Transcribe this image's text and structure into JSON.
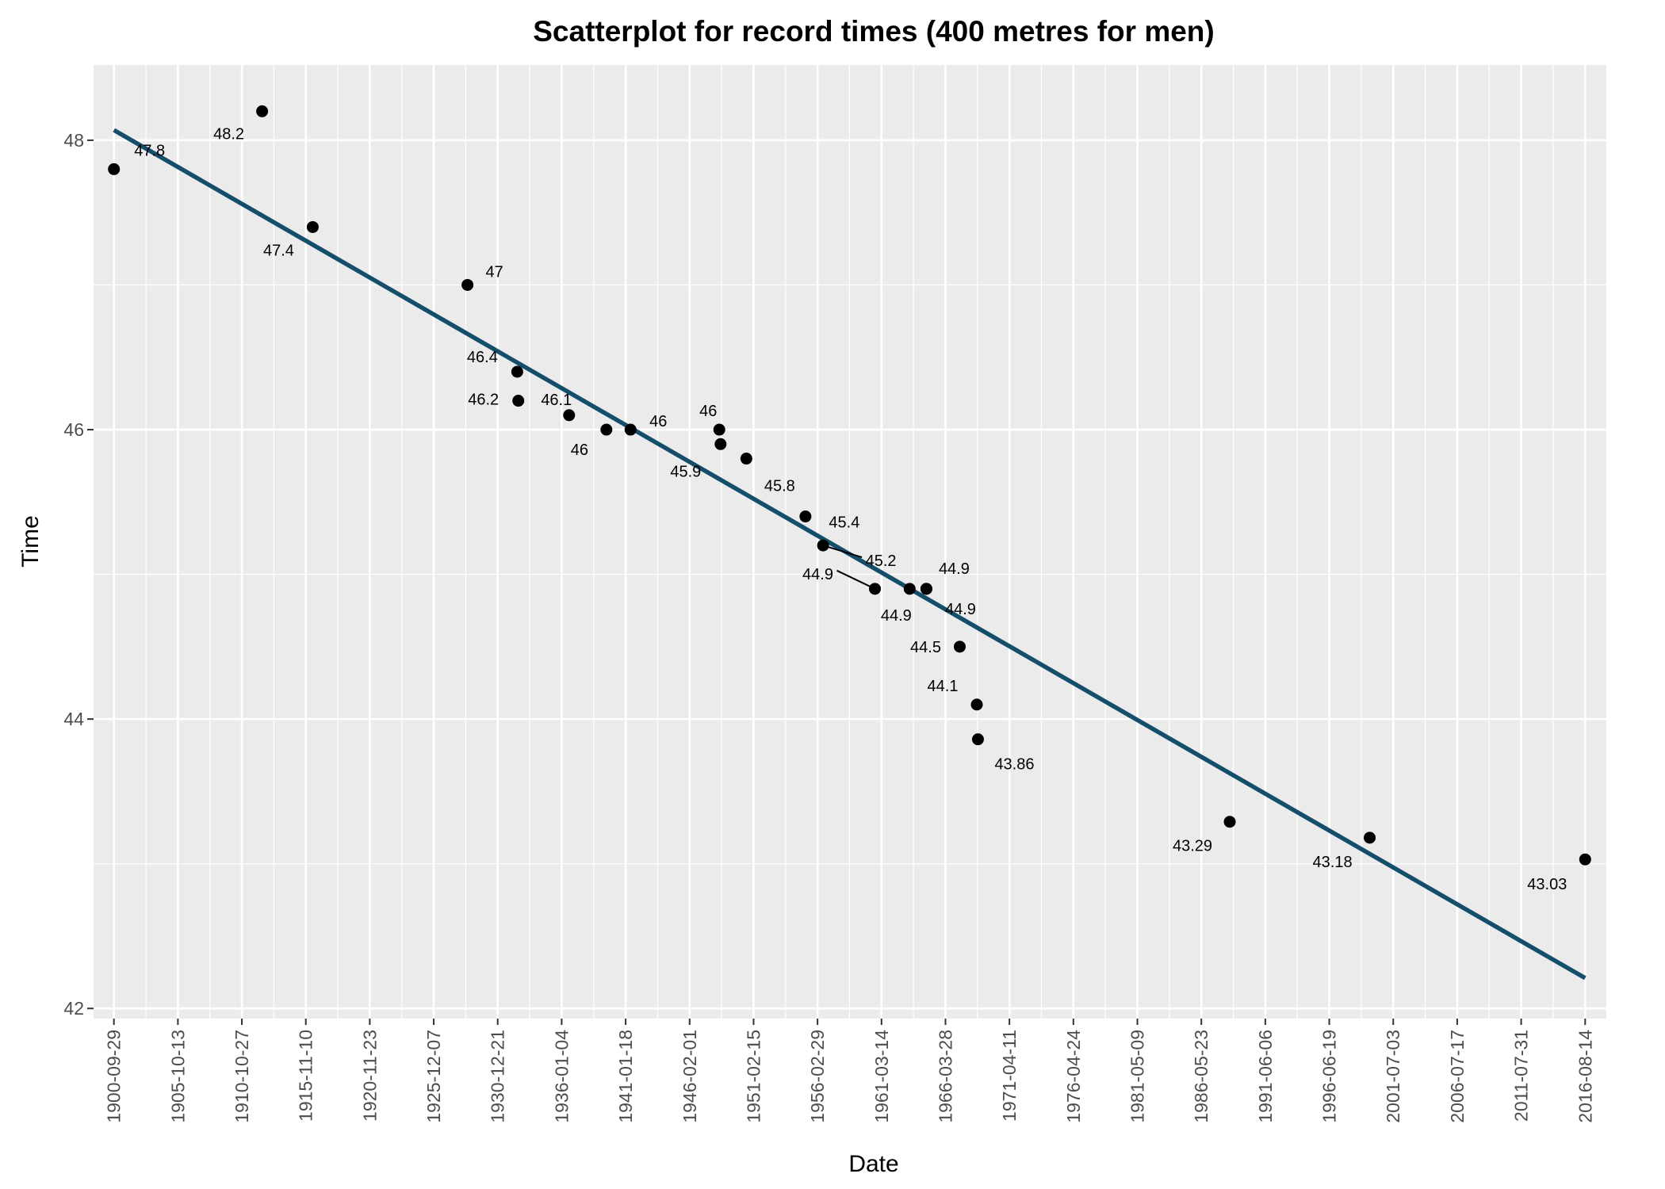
{
  "chart_data": {
    "type": "scatter",
    "title": "Scatterplot for record times (400 metres for men)",
    "xlabel": "Date",
    "ylabel": "Time",
    "x_scale": "date",
    "xlim": [
      "1899-02-20",
      "2018-04-15"
    ],
    "ylim": [
      41.93,
      48.52
    ],
    "x_ticks": [
      "1900-09-29",
      "1905-10-13",
      "1910-10-27",
      "1915-11-10",
      "1920-11-23",
      "1925-12-07",
      "1930-12-21",
      "1936-01-04",
      "1941-01-18",
      "1946-02-01",
      "1951-02-15",
      "1956-02-29",
      "1961-03-14",
      "1966-03-28",
      "1971-04-11",
      "1976-04-24",
      "1981-05-09",
      "1986-05-23",
      "1991-06-06",
      "1996-06-19",
      "2001-07-03",
      "2006-07-17",
      "2011-07-31",
      "2016-08-14"
    ],
    "y_ticks": [
      42,
      44,
      46,
      48
    ],
    "points": [
      {
        "x": "1900-09-29",
        "y": 47.8,
        "label": "47.8"
      },
      {
        "x": "1912-06-01",
        "y": 48.2,
        "label": "48.2"
      },
      {
        "x": "1916-05-27",
        "y": 47.4,
        "label": "47.4"
      },
      {
        "x": "1928-08-04",
        "y": 47.0,
        "label": "47"
      },
      {
        "x": "1932-07-05",
        "y": 46.4,
        "label": "46.4"
      },
      {
        "x": "1932-08-05",
        "y": 46.2,
        "label": "46.2"
      },
      {
        "x": "1936-08-05",
        "y": 46.1,
        "label": "46.1"
      },
      {
        "x": "1939-07-14",
        "y": 46.0,
        "label": "46"
      },
      {
        "x": "1941-06-07",
        "y": 46.0,
        "label": "46"
      },
      {
        "x": "1948-06-04",
        "y": 46.0,
        "label": "46"
      },
      {
        "x": "1948-07-10",
        "y": 45.9,
        "label": "45.9"
      },
      {
        "x": "1950-07-22",
        "y": 45.8,
        "label": "45.8"
      },
      {
        "x": "1955-03-18",
        "y": 45.4,
        "label": "45.4"
      },
      {
        "x": "1956-08-06",
        "y": 45.2,
        "label": "45.2"
      },
      {
        "x": "1960-09-06",
        "y": 44.9,
        "label": "44.9"
      },
      {
        "x": "1963-06-02",
        "y": 44.9,
        "label": "44.9"
      },
      {
        "x": "1964-09-25",
        "y": 44.9,
        "label": "44.9"
      },
      {
        "x": "1964-09-26",
        "y": 44.9,
        "label": "44.9"
      },
      {
        "x": "1967-05-13",
        "y": 44.5,
        "label": "44.5"
      },
      {
        "x": "1968-09-15",
        "y": 44.1,
        "label": "44.1"
      },
      {
        "x": "1968-10-18",
        "y": 43.86,
        "label": "43.86"
      },
      {
        "x": "1988-08-17",
        "y": 43.29,
        "label": "43.29"
      },
      {
        "x": "1999-08-26",
        "y": 43.18,
        "label": "43.18"
      },
      {
        "x": "2016-08-14",
        "y": 43.03,
        "label": "43.03"
      }
    ],
    "trend_line": {
      "x": [
        "1900-09-29",
        "2016-08-14"
      ],
      "y": [
        48.07,
        42.21
      ],
      "color": "#154e6b"
    },
    "colors": {
      "panel": "#ebebeb",
      "grid": "#ffffff",
      "point": "#000000",
      "trend": "#154e6b",
      "tick_text": "#4d4d4d"
    },
    "grid": true,
    "legend": "none"
  }
}
